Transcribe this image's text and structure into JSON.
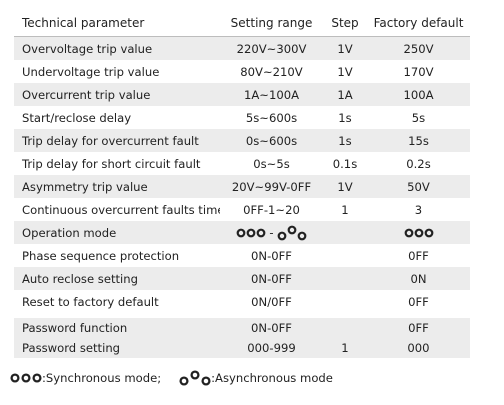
{
  "header": {
    "parameter": "Technical parameter",
    "range": "Setting range",
    "step": "Step",
    "default": "Factory default"
  },
  "rows": [
    {
      "name": "Overvoltage trip value",
      "range": "220V~300V",
      "step": "1V",
      "default": "250V"
    },
    {
      "name": "Undervoltage trip value",
      "range": "80V~210V",
      "step": "1V",
      "default": "170V"
    },
    {
      "name": "Overcurrent  trip value",
      "range": "1A~100A",
      "step": "1A",
      "default": "100A"
    },
    {
      "name": "Start/reclose delay",
      "range": "5s~600s",
      "step": "1s",
      "default": "5s"
    },
    {
      "name": "Trip delay for overcurrent  fault",
      "range": "0s~600s",
      "step": "1s",
      "default": "15s"
    },
    {
      "name": "Trip delay for short circuit fault",
      "range": "0s~5s",
      "step": "0.1s",
      "default": "0.2s"
    },
    {
      "name": "Asymmetry trip value",
      "range": "20V~99V-0FF",
      "step": "1V",
      "default": "50V"
    },
    {
      "name": "Continuous overcurrent faults times",
      "range": "0FF-1~20",
      "step": "1",
      "default": "3"
    },
    {
      "name": "Operation mode",
      "range_dash": "-",
      "step": "",
      "default": ""
    },
    {
      "name": "Phase sequence protection",
      "range": "0N-0FF",
      "step": "",
      "default": "0FF"
    },
    {
      "name": "Auto reclose setting",
      "range": "0N-0FF",
      "step": "",
      "default": "0N"
    },
    {
      "name": "Reset to factory default",
      "range": "0N/0FF",
      "step": "",
      "default": "0FF"
    },
    {
      "name": "Password function",
      "range": "0N-0FF",
      "step": "",
      "default": "0FF"
    },
    {
      "name": "Password setting",
      "range": "000-999",
      "step": "1",
      "default": "000"
    }
  ],
  "legend": {
    "sync": ":Synchronous mode;",
    "async": ":Asynchronous mode"
  },
  "icons": {
    "sync": "synchronous-mode-icon",
    "async": "asynchronous-mode-icon"
  }
}
